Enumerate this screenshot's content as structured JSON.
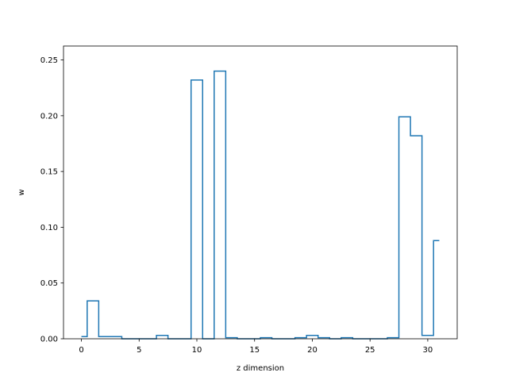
{
  "chart_data": {
    "type": "line",
    "drawstyle": "steps-mid",
    "xlabel": "z dimension",
    "ylabel": "w",
    "xlim": [
      -1.55,
      32.55
    ],
    "ylim": [
      0,
      0.2625
    ],
    "xticks": [
      0,
      5,
      10,
      15,
      20,
      25,
      30
    ],
    "xtick_labels": [
      "0",
      "5",
      "10",
      "15",
      "20",
      "25",
      "30"
    ],
    "yticks": [
      0.0,
      0.05,
      0.1,
      0.15,
      0.2,
      0.25
    ],
    "ytick_labels": [
      "0.00",
      "0.05",
      "0.10",
      "0.15",
      "0.20",
      "0.25"
    ],
    "grid": false,
    "color": "#1f77b4",
    "x": [
      0,
      1,
      2,
      3,
      4,
      5,
      6,
      7,
      8,
      9,
      10,
      11,
      12,
      13,
      14,
      15,
      16,
      17,
      18,
      19,
      20,
      21,
      22,
      23,
      24,
      25,
      26,
      27,
      28,
      29,
      30,
      31
    ],
    "values": [
      0.002,
      0.034,
      0.002,
      0.002,
      0.0,
      0.0,
      0.0,
      0.003,
      0.0,
      0.0,
      0.232,
      0.0,
      0.24,
      0.001,
      0.0,
      0.0,
      0.001,
      0.0,
      0.0,
      0.001,
      0.003,
      0.001,
      0.0,
      0.001,
      0.0,
      0.0,
      0.0,
      0.001,
      0.199,
      0.182,
      0.003,
      0.088
    ]
  }
}
